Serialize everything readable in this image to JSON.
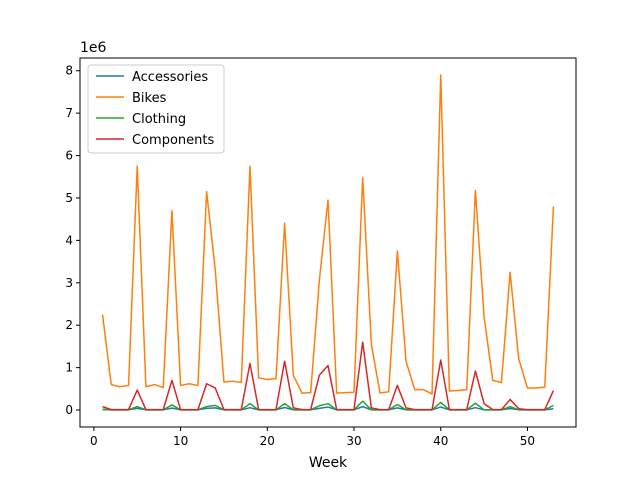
{
  "chart_data": {
    "type": "line",
    "xlabel": "Week",
    "ylabel": "",
    "y_offset_label": "1e6",
    "xlim": [
      -1.6,
      55.6
    ],
    "ylim": [
      -400000,
      8300000
    ],
    "x_ticks": [
      0,
      10,
      20,
      30,
      40,
      50
    ],
    "y_ticks": [
      0,
      1000000,
      2000000,
      3000000,
      4000000,
      5000000,
      6000000,
      7000000,
      8000000
    ],
    "y_tick_labels": [
      "0",
      "1",
      "2",
      "3",
      "4",
      "5",
      "6",
      "7",
      "8"
    ],
    "legend_position": "top-left",
    "grid": false,
    "x": [
      1,
      2,
      3,
      4,
      5,
      6,
      7,
      8,
      9,
      10,
      11,
      12,
      13,
      14,
      15,
      16,
      17,
      18,
      19,
      20,
      21,
      22,
      23,
      24,
      25,
      26,
      27,
      28,
      29,
      30,
      31,
      32,
      33,
      34,
      35,
      36,
      37,
      38,
      39,
      40,
      41,
      42,
      43,
      44,
      45,
      46,
      47,
      48,
      49,
      50,
      51,
      52,
      53
    ],
    "series": [
      {
        "name": "Accessories",
        "color": "#1f77b4",
        "values": [
          10000,
          5000,
          5000,
          5000,
          40000,
          5000,
          5000,
          5000,
          45000,
          5000,
          5000,
          5000,
          40000,
          50000,
          5000,
          5000,
          5000,
          55000,
          5000,
          5000,
          5000,
          60000,
          5000,
          5000,
          5000,
          40000,
          70000,
          5000,
          5000,
          5000,
          80000,
          5000,
          5000,
          5000,
          50000,
          5000,
          5000,
          5000,
          5000,
          70000,
          5000,
          5000,
          5000,
          55000,
          5000,
          5000,
          5000,
          35000,
          5000,
          5000,
          5000,
          5000,
          30000
        ]
      },
      {
        "name": "Bikes",
        "color": "#ff7f0e",
        "values": [
          2250000,
          600000,
          550000,
          580000,
          5750000,
          550000,
          600000,
          530000,
          4700000,
          580000,
          620000,
          580000,
          5150000,
          3300000,
          660000,
          680000,
          650000,
          5750000,
          760000,
          720000,
          740000,
          4400000,
          820000,
          400000,
          410000,
          3050000,
          4950000,
          400000,
          410000,
          420000,
          5480000,
          1550000,
          400000,
          430000,
          3750000,
          1150000,
          480000,
          480000,
          380000,
          7900000,
          450000,
          460000,
          480000,
          5180000,
          2200000,
          700000,
          650000,
          3250000,
          1200000,
          520000,
          520000,
          540000,
          4800000
        ]
      },
      {
        "name": "Clothing",
        "color": "#2ca02c",
        "values": [
          20000,
          5000,
          5000,
          5000,
          80000,
          5000,
          5000,
          5000,
          120000,
          5000,
          5000,
          5000,
          80000,
          110000,
          5000,
          5000,
          5000,
          150000,
          5000,
          5000,
          5000,
          150000,
          5000,
          5000,
          5000,
          100000,
          150000,
          5000,
          5000,
          5000,
          210000,
          5000,
          5000,
          5000,
          130000,
          5000,
          5000,
          5000,
          5000,
          180000,
          5000,
          5000,
          5000,
          160000,
          5000,
          5000,
          5000,
          80000,
          5000,
          5000,
          5000,
          5000,
          110000
        ]
      },
      {
        "name": "Components",
        "color": "#d62728",
        "values": [
          80000,
          10000,
          10000,
          10000,
          470000,
          10000,
          10000,
          10000,
          700000,
          10000,
          10000,
          10000,
          620000,
          520000,
          10000,
          10000,
          10000,
          1100000,
          10000,
          10000,
          10000,
          1150000,
          50000,
          10000,
          10000,
          820000,
          1050000,
          10000,
          10000,
          10000,
          1600000,
          50000,
          10000,
          10000,
          580000,
          50000,
          10000,
          10000,
          10000,
          1180000,
          10000,
          10000,
          10000,
          920000,
          150000,
          10000,
          10000,
          250000,
          30000,
          10000,
          10000,
          10000,
          460000
        ]
      }
    ]
  }
}
